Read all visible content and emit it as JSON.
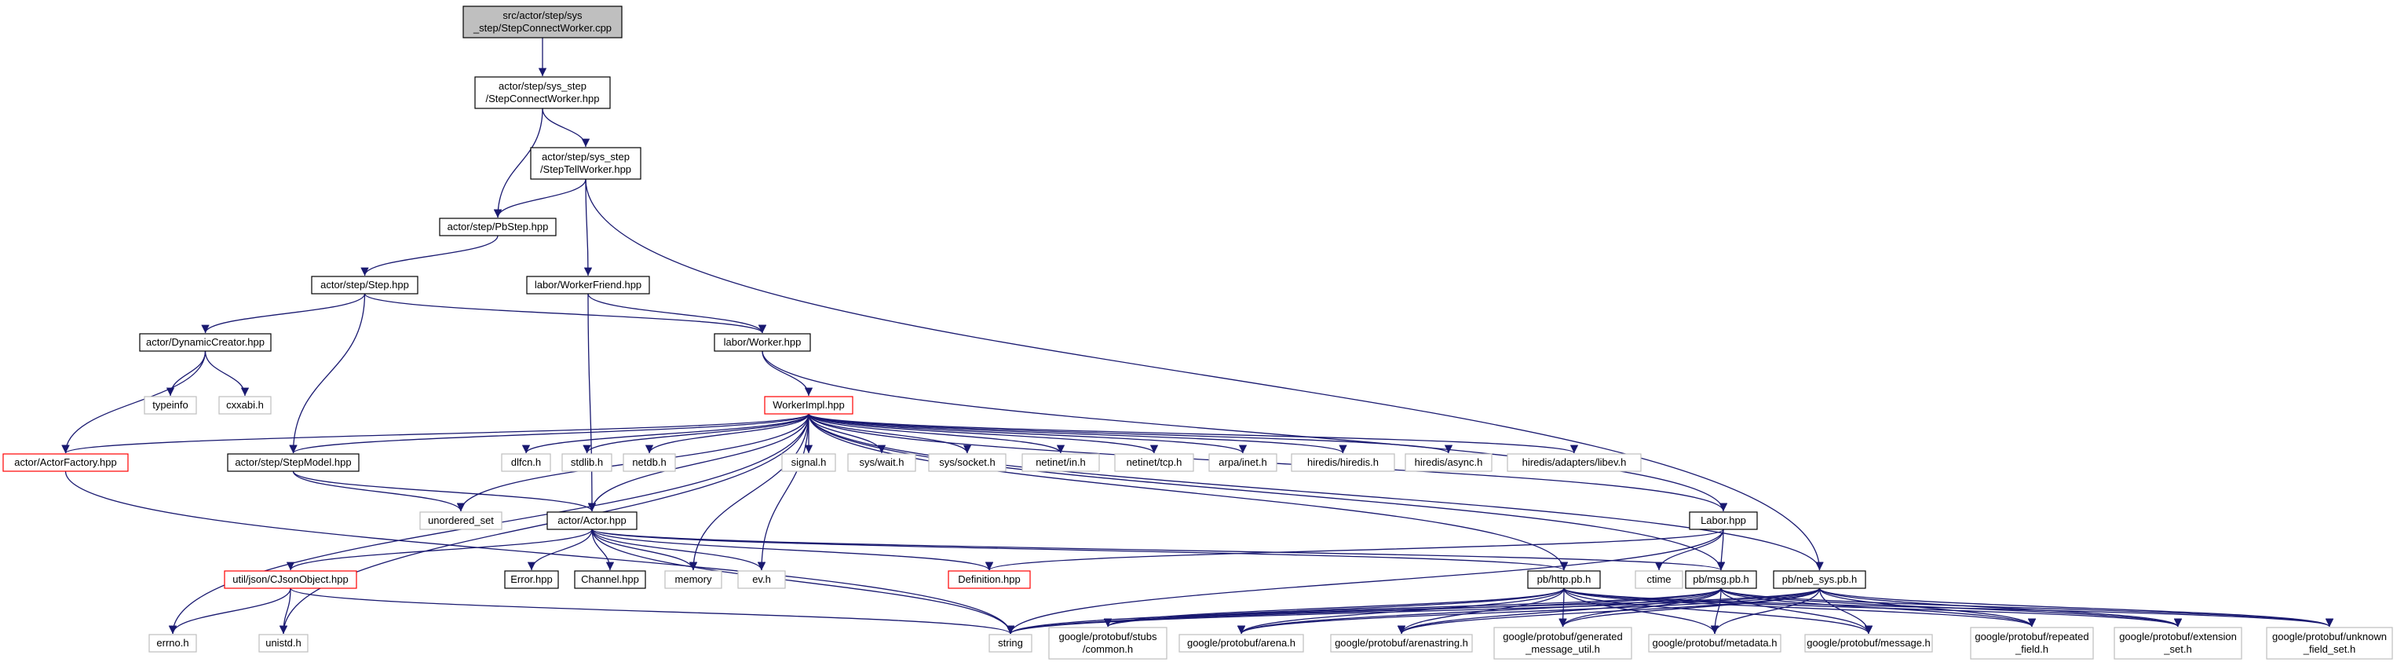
{
  "graph": {
    "title": "",
    "colors": {
      "background": "#ffffff",
      "edge": "#191970",
      "edge_gray": "#aaaaaa",
      "root_fill": "#bfbfbf",
      "node_border_black": "#000000",
      "node_border_red": "#ff0000",
      "node_border_gray": "#bfbfbf",
      "text": "#000000"
    },
    "nodes": [
      {
        "id": "root",
        "lines": [
          "src/actor/step/sys",
          "_step/StepConnectWorker.cpp"
        ],
        "style": "root"
      },
      {
        "id": "scw_hpp",
        "lines": [
          "actor/step/sys_step",
          "/StepConnectWorker.hpp"
        ],
        "style": "black"
      },
      {
        "id": "stw_hpp",
        "lines": [
          "actor/step/sys_step",
          "/StepTellWorker.hpp"
        ],
        "style": "black"
      },
      {
        "id": "pbstep",
        "lines": [
          "actor/step/PbStep.hpp"
        ],
        "style": "black"
      },
      {
        "id": "step",
        "lines": [
          "actor/step/Step.hpp"
        ],
        "style": "black"
      },
      {
        "id": "workerfriend",
        "lines": [
          "labor/WorkerFriend.hpp"
        ],
        "style": "black"
      },
      {
        "id": "dyncreator",
        "lines": [
          "actor/DynamicCreator.hpp"
        ],
        "style": "black"
      },
      {
        "id": "worker",
        "lines": [
          "labor/Worker.hpp"
        ],
        "style": "black"
      },
      {
        "id": "typeinfo",
        "lines": [
          "typeinfo"
        ],
        "style": "gray"
      },
      {
        "id": "cxxabi",
        "lines": [
          "cxxabi.h"
        ],
        "style": "gray"
      },
      {
        "id": "workerimpl",
        "lines": [
          "WorkerImpl.hpp"
        ],
        "style": "red"
      },
      {
        "id": "actorfactory",
        "lines": [
          "actor/ActorFactory.hpp"
        ],
        "style": "red"
      },
      {
        "id": "stepmodel",
        "lines": [
          "actor/step/StepModel.hpp"
        ],
        "style": "black"
      },
      {
        "id": "dlfcn",
        "lines": [
          "dlfcn.h"
        ],
        "style": "gray"
      },
      {
        "id": "stdlib",
        "lines": [
          "stdlib.h"
        ],
        "style": "gray"
      },
      {
        "id": "netdb",
        "lines": [
          "netdb.h"
        ],
        "style": "gray"
      },
      {
        "id": "signal",
        "lines": [
          "signal.h"
        ],
        "style": "gray"
      },
      {
        "id": "syswait",
        "lines": [
          "sys/wait.h"
        ],
        "style": "gray"
      },
      {
        "id": "syssocket",
        "lines": [
          "sys/socket.h"
        ],
        "style": "gray"
      },
      {
        "id": "netinetin",
        "lines": [
          "netinet/in.h"
        ],
        "style": "gray"
      },
      {
        "id": "netinettcp",
        "lines": [
          "netinet/tcp.h"
        ],
        "style": "gray"
      },
      {
        "id": "arpainet",
        "lines": [
          "arpa/inet.h"
        ],
        "style": "gray"
      },
      {
        "id": "hiredis",
        "lines": [
          "hiredis/hiredis.h"
        ],
        "style": "gray"
      },
      {
        "id": "hiredisasync",
        "lines": [
          "hiredis/async.h"
        ],
        "style": "gray"
      },
      {
        "id": "libev",
        "lines": [
          "hiredis/adapters/libev.h"
        ],
        "style": "gray"
      },
      {
        "id": "unordered_set",
        "lines": [
          "unordered_set"
        ],
        "style": "gray"
      },
      {
        "id": "actorhpp",
        "lines": [
          "actor/Actor.hpp"
        ],
        "style": "black"
      },
      {
        "id": "laborhpp",
        "lines": [
          "Labor.hpp"
        ],
        "style": "black"
      },
      {
        "id": "cjson",
        "lines": [
          "util/json/CJsonObject.hpp"
        ],
        "style": "red"
      },
      {
        "id": "errorhpp",
        "lines": [
          "Error.hpp"
        ],
        "style": "black"
      },
      {
        "id": "channel",
        "lines": [
          "Channel.hpp"
        ],
        "style": "black"
      },
      {
        "id": "memory",
        "lines": [
          "memory"
        ],
        "style": "gray"
      },
      {
        "id": "evh",
        "lines": [
          "ev.h"
        ],
        "style": "gray"
      },
      {
        "id": "definition",
        "lines": [
          "Definition.hpp"
        ],
        "style": "red"
      },
      {
        "id": "httppb",
        "lines": [
          "pb/http.pb.h"
        ],
        "style": "black"
      },
      {
        "id": "ctime",
        "lines": [
          "ctime"
        ],
        "style": "gray"
      },
      {
        "id": "msgpb",
        "lines": [
          "pb/msg.pb.h"
        ],
        "style": "black"
      },
      {
        "id": "nebsys",
        "lines": [
          "pb/neb_sys.pb.h"
        ],
        "style": "black"
      },
      {
        "id": "errno",
        "lines": [
          "errno.h"
        ],
        "style": "gray"
      },
      {
        "id": "unistd",
        "lines": [
          "unistd.h"
        ],
        "style": "gray"
      },
      {
        "id": "string",
        "lines": [
          "string"
        ],
        "style": "gray"
      },
      {
        "id": "gp_common",
        "lines": [
          "google/protobuf/stubs",
          "/common.h"
        ],
        "style": "gray"
      },
      {
        "id": "gp_arena",
        "lines": [
          "google/protobuf/arena.h"
        ],
        "style": "gray"
      },
      {
        "id": "gp_arenastring",
        "lines": [
          "google/protobuf/arenastring.h"
        ],
        "style": "gray"
      },
      {
        "id": "gp_genmsg",
        "lines": [
          "google/protobuf/generated",
          "_message_util.h"
        ],
        "style": "gray"
      },
      {
        "id": "gp_metadata",
        "lines": [
          "google/protobuf/metadata.h"
        ],
        "style": "gray"
      },
      {
        "id": "gp_message",
        "lines": [
          "google/protobuf/message.h"
        ],
        "style": "gray"
      },
      {
        "id": "gp_repeated",
        "lines": [
          "google/protobuf/repeated",
          "_field.h"
        ],
        "style": "gray"
      },
      {
        "id": "gp_extension",
        "lines": [
          "google/protobuf/extension",
          "_set.h"
        ],
        "style": "gray"
      },
      {
        "id": "gp_unknown",
        "lines": [
          "google/protobuf/unknown",
          "_field_set.h"
        ],
        "style": "gray"
      }
    ],
    "edges": [
      [
        "root",
        "scw_hpp"
      ],
      [
        "scw_hpp",
        "stw_hpp"
      ],
      [
        "scw_hpp",
        "pbstep"
      ],
      [
        "stw_hpp",
        "pbstep"
      ],
      [
        "stw_hpp",
        "workerfriend"
      ],
      [
        "stw_hpp",
        "nebsys"
      ],
      [
        "pbstep",
        "step"
      ],
      [
        "step",
        "dyncreator"
      ],
      [
        "step",
        "worker"
      ],
      [
        "step",
        "stepmodel"
      ],
      [
        "workerfriend",
        "worker"
      ],
      [
        "workerfriend",
        "actorhpp"
      ],
      [
        "dyncreator",
        "typeinfo"
      ],
      [
        "dyncreator",
        "cxxabi"
      ],
      [
        "dyncreator",
        "actorfactory"
      ],
      [
        "worker",
        "workerimpl"
      ],
      [
        "worker",
        "laborhpp"
      ],
      [
        "workerimpl",
        "actorfactory"
      ],
      [
        "workerimpl",
        "stepmodel"
      ],
      [
        "workerimpl",
        "dlfcn"
      ],
      [
        "workerimpl",
        "stdlib"
      ],
      [
        "workerimpl",
        "netdb"
      ],
      [
        "workerimpl",
        "signal"
      ],
      [
        "workerimpl",
        "syswait"
      ],
      [
        "workerimpl",
        "syssocket"
      ],
      [
        "workerimpl",
        "netinetin"
      ],
      [
        "workerimpl",
        "netinettcp"
      ],
      [
        "workerimpl",
        "arpainet"
      ],
      [
        "workerimpl",
        "hiredis"
      ],
      [
        "workerimpl",
        "hiredisasync"
      ],
      [
        "workerimpl",
        "libev"
      ],
      [
        "workerimpl",
        "unordered_set"
      ],
      [
        "workerimpl",
        "actorhpp"
      ],
      [
        "workerimpl",
        "laborhpp"
      ],
      [
        "workerimpl",
        "errno"
      ],
      [
        "workerimpl",
        "unistd"
      ],
      [
        "workerimpl",
        "memory"
      ],
      [
        "workerimpl",
        "evh"
      ],
      [
        "workerimpl",
        "httppb"
      ],
      [
        "workerimpl",
        "msgpb"
      ],
      [
        "workerimpl",
        "nebsys"
      ],
      [
        "actorfactory",
        "string"
      ],
      [
        "stepmodel",
        "unordered_set"
      ],
      [
        "stepmodel",
        "actorhpp"
      ],
      [
        "actorhpp",
        "cjson"
      ],
      [
        "actorhpp",
        "errorhpp"
      ],
      [
        "actorhpp",
        "channel"
      ],
      [
        "actorhpp",
        "memory"
      ],
      [
        "actorhpp",
        "evh"
      ],
      [
        "actorhpp",
        "definition"
      ],
      [
        "actorhpp",
        "httppb"
      ],
      [
        "actorhpp",
        "msgpb"
      ],
      [
        "actorhpp",
        "string"
      ],
      [
        "laborhpp",
        "definition"
      ],
      [
        "laborhpp",
        "ctime"
      ],
      [
        "laborhpp",
        "msgpb"
      ],
      [
        "laborhpp",
        "string"
      ],
      [
        "cjson",
        "errno"
      ],
      [
        "cjson",
        "unistd"
      ],
      [
        "cjson",
        "string"
      ],
      [
        "httppb",
        "string"
      ],
      [
        "httppb",
        "gp_common"
      ],
      [
        "httppb",
        "gp_arena"
      ],
      [
        "httppb",
        "gp_arenastring"
      ],
      [
        "httppb",
        "gp_genmsg"
      ],
      [
        "httppb",
        "gp_metadata"
      ],
      [
        "httppb",
        "gp_message"
      ],
      [
        "httppb",
        "gp_repeated"
      ],
      [
        "httppb",
        "gp_extension"
      ],
      [
        "httppb",
        "gp_unknown"
      ],
      [
        "msgpb",
        "string"
      ],
      [
        "msgpb",
        "gp_common"
      ],
      [
        "msgpb",
        "gp_arena"
      ],
      [
        "msgpb",
        "gp_arenastring"
      ],
      [
        "msgpb",
        "gp_genmsg"
      ],
      [
        "msgpb",
        "gp_metadata"
      ],
      [
        "msgpb",
        "gp_message"
      ],
      [
        "msgpb",
        "gp_repeated"
      ],
      [
        "msgpb",
        "gp_extension"
      ],
      [
        "msgpb",
        "gp_unknown"
      ],
      [
        "nebsys",
        "string"
      ],
      [
        "nebsys",
        "gp_common"
      ],
      [
        "nebsys",
        "gp_arena"
      ],
      [
        "nebsys",
        "gp_arenastring"
      ],
      [
        "nebsys",
        "gp_genmsg"
      ],
      [
        "nebsys",
        "gp_metadata"
      ],
      [
        "nebsys",
        "gp_message"
      ],
      [
        "nebsys",
        "gp_repeated"
      ],
      [
        "nebsys",
        "gp_extension"
      ],
      [
        "nebsys",
        "gp_unknown"
      ]
    ]
  }
}
